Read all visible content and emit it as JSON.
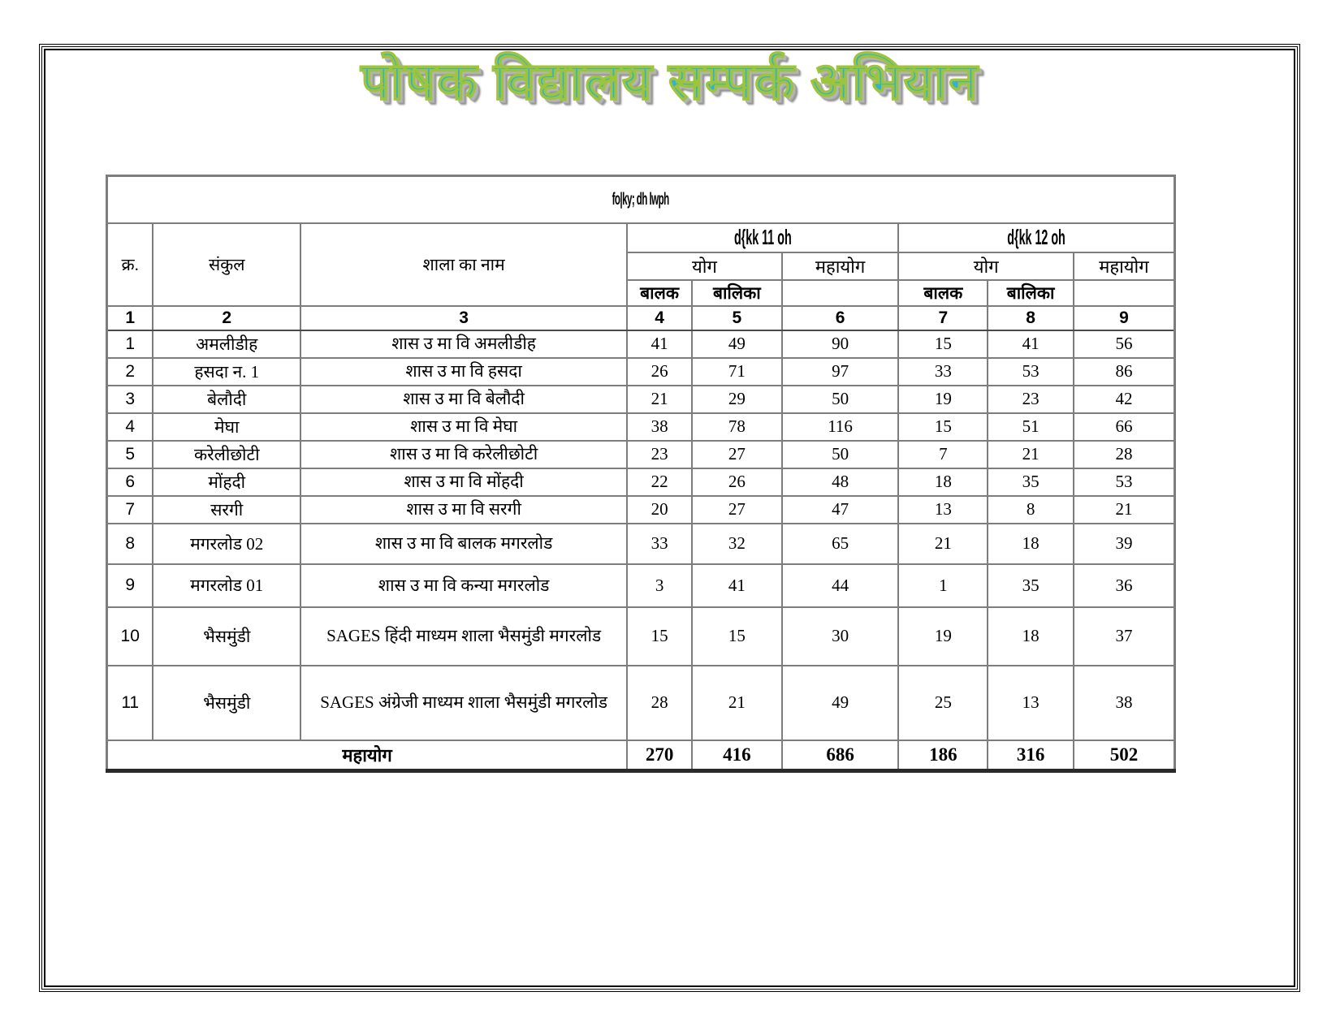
{
  "wordart_title": "पोषक विद्यालय सम्पर्क अभियान",
  "accent_colors": {
    "title_fill": "#2fb3d4",
    "title_outline": "#9dc43b",
    "title_shadow": "#969696",
    "grid_line": "#7d7d7d"
  },
  "table": {
    "title": "fo|ky; dh lwph",
    "header": {
      "sn": "क्र.",
      "cluster": "संकुल",
      "school": "शाला का नाम",
      "class11": "d{kk 11 oh",
      "class12": "d{kk 12 oh",
      "yog": "योग",
      "mahayog": "महायोग",
      "balak": "बालक",
      "balika": "बालिका",
      "col_numbers": [
        "1",
        "2",
        "3",
        "4",
        "5",
        "6",
        "7",
        "8",
        "9"
      ]
    },
    "rows": [
      {
        "sn": "1",
        "cluster": "अमलीडीह",
        "school": "शास उ मा वि अमलीडीह",
        "values": [
          "41",
          "49",
          "90",
          "15",
          "41",
          "56"
        ]
      },
      {
        "sn": "2",
        "cluster": "हसदा न. 1",
        "school": "शास उ मा वि हसदा",
        "values": [
          "26",
          "71",
          "97",
          "33",
          "53",
          "86"
        ]
      },
      {
        "sn": "3",
        "cluster": "बेलौदी",
        "school": "शास उ मा वि बेलौदी",
        "values": [
          "21",
          "29",
          "50",
          "19",
          "23",
          "42"
        ]
      },
      {
        "sn": "4",
        "cluster": "मेघा",
        "school": "शास उ मा वि मेघा",
        "values": [
          "38",
          "78",
          "116",
          "15",
          "51",
          "66"
        ]
      },
      {
        "sn": "5",
        "cluster": "करेलीछोटी",
        "school": "शास उ मा वि करेलीछोटी",
        "values": [
          "23",
          "27",
          "50",
          "7",
          "21",
          "28"
        ]
      },
      {
        "sn": "6",
        "cluster": "मोंहदी",
        "school": "शास उ मा वि मोंहदी",
        "values": [
          "22",
          "26",
          "48",
          "18",
          "35",
          "53"
        ]
      },
      {
        "sn": "7",
        "cluster": "सरगी",
        "school": "शास उ मा वि सरगी",
        "values": [
          "20",
          "27",
          "47",
          "13",
          "8",
          "21"
        ]
      },
      {
        "sn": "8",
        "cluster": "मगरलोड 02",
        "school": "शास उ मा वि बालक मगरलोड",
        "values": [
          "33",
          "32",
          "65",
          "21",
          "18",
          "39"
        ]
      },
      {
        "sn": "9",
        "cluster": "मगरलोड 01",
        "school": "शास उ मा वि कन्या मगरलोड",
        "values": [
          "3",
          "41",
          "44",
          "1",
          "35",
          "36"
        ]
      },
      {
        "sn": "10",
        "cluster": "भैसमुंडी",
        "school": "SAGES हिंदी माध्यम शाला भैसमुंडी मगरलोड",
        "values": [
          "15",
          "15",
          "30",
          "19",
          "18",
          "37"
        ]
      },
      {
        "sn": "11",
        "cluster": "भैसमुंडी",
        "school": "SAGES अंग्रेजी माध्यम शाला भैसमुंडी मगरलोड",
        "values": [
          "28",
          "21",
          "49",
          "25",
          "13",
          "38"
        ]
      }
    ],
    "total": {
      "label": "महायोग",
      "values": [
        "270",
        "416",
        "686",
        "186",
        "316",
        "502"
      ]
    }
  }
}
